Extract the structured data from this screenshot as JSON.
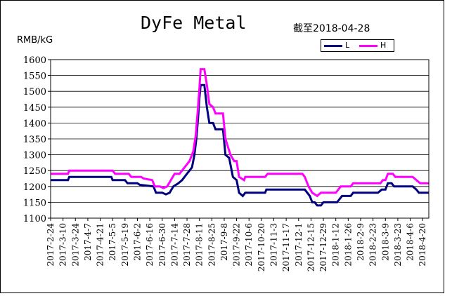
{
  "chart_data": {
    "type": "line",
    "title": "DyFe Metal",
    "subtitle": "截至2018-04-28",
    "ylabel": "RMB/kG",
    "ylim": [
      1100,
      1600
    ],
    "yticks": [
      1100,
      1150,
      1200,
      1250,
      1300,
      1350,
      1400,
      1450,
      1500,
      1550,
      1600
    ],
    "grid": true,
    "legend_position": "top-right",
    "categories": [
      "2017-2-24",
      "2017-3-10",
      "2017-3-24",
      "2017-4-7",
      "2017-4-21",
      "2017-5-5",
      "2017-5-19",
      "2017-6-2",
      "2017-6-16",
      "2017-6-30",
      "2017-7-14",
      "2017-7-28",
      "2017-8-11",
      "2017-8-25",
      "2017-9-8",
      "2017-9-22",
      "2017-10-6",
      "2017-10-20",
      "2017-11-3",
      "2017-11-17",
      "2017-12-1",
      "2017-12-15",
      "2017-12-29",
      "2018-1-12",
      "2018-1-26",
      "2018-2-9",
      "2018-2-23",
      "2018-3-9",
      "2018-3-23",
      "2018-4-6",
      "2018-4-20"
    ],
    "series": [
      {
        "name": "L",
        "color": "#00007f",
        "points": [
          [
            0,
            1220
          ],
          [
            1.4,
            1220
          ],
          [
            1.5,
            1230
          ],
          [
            4.9,
            1230
          ],
          [
            5.0,
            1220
          ],
          [
            6.0,
            1220
          ],
          [
            6.2,
            1210
          ],
          [
            7.0,
            1210
          ],
          [
            7.2,
            1205
          ],
          [
            8.3,
            1200
          ],
          [
            8.5,
            1180
          ],
          [
            9.0,
            1180
          ],
          [
            9.3,
            1175
          ],
          [
            9.6,
            1180
          ],
          [
            9.9,
            1200
          ],
          [
            10.3,
            1210
          ],
          [
            10.6,
            1220
          ],
          [
            11.0,
            1240
          ],
          [
            11.4,
            1260
          ],
          [
            11.6,
            1300
          ],
          [
            11.75,
            1350
          ],
          [
            11.9,
            1420
          ],
          [
            12.0,
            1480
          ],
          [
            12.1,
            1520
          ],
          [
            12.4,
            1520
          ],
          [
            12.6,
            1450
          ],
          [
            12.8,
            1400
          ],
          [
            13.1,
            1400
          ],
          [
            13.3,
            1380
          ],
          [
            13.9,
            1380
          ],
          [
            14.1,
            1300
          ],
          [
            14.4,
            1290
          ],
          [
            14.7,
            1230
          ],
          [
            15.0,
            1220
          ],
          [
            15.2,
            1180
          ],
          [
            15.5,
            1170
          ],
          [
            15.7,
            1180
          ],
          [
            17.3,
            1180
          ],
          [
            17.4,
            1190
          ],
          [
            20.5,
            1190
          ],
          [
            20.9,
            1170
          ],
          [
            21.1,
            1150
          ],
          [
            21.3,
            1150
          ],
          [
            21.5,
            1140
          ],
          [
            21.8,
            1140
          ],
          [
            22.0,
            1150
          ],
          [
            23.1,
            1150
          ],
          [
            23.3,
            1160
          ],
          [
            23.5,
            1170
          ],
          [
            24.2,
            1170
          ],
          [
            24.4,
            1180
          ],
          [
            26.4,
            1180
          ],
          [
            26.7,
            1190
          ],
          [
            27.0,
            1190
          ],
          [
            27.2,
            1210
          ],
          [
            27.5,
            1210
          ],
          [
            27.7,
            1200
          ],
          [
            29.2,
            1200
          ],
          [
            29.5,
            1190
          ],
          [
            29.7,
            1180
          ],
          [
            30.5,
            1180
          ]
        ]
      },
      {
        "name": "H",
        "color": "#ff00ff",
        "points": [
          [
            0,
            1240
          ],
          [
            1.4,
            1240
          ],
          [
            1.5,
            1250
          ],
          [
            5.0,
            1250
          ],
          [
            5.2,
            1240
          ],
          [
            6.3,
            1240
          ],
          [
            6.5,
            1230
          ],
          [
            7.3,
            1230
          ],
          [
            7.5,
            1225
          ],
          [
            8.2,
            1220
          ],
          [
            8.4,
            1200
          ],
          [
            8.8,
            1200
          ],
          [
            9.1,
            1195
          ],
          [
            9.4,
            1200
          ],
          [
            9.7,
            1220
          ],
          [
            10.0,
            1240
          ],
          [
            10.4,
            1240
          ],
          [
            10.8,
            1260
          ],
          [
            11.2,
            1280
          ],
          [
            11.5,
            1310
          ],
          [
            11.7,
            1360
          ],
          [
            11.85,
            1430
          ],
          [
            12.0,
            1510
          ],
          [
            12.1,
            1570
          ],
          [
            12.4,
            1570
          ],
          [
            12.6,
            1520
          ],
          [
            12.8,
            1460
          ],
          [
            13.1,
            1450
          ],
          [
            13.3,
            1430
          ],
          [
            13.9,
            1430
          ],
          [
            14.1,
            1350
          ],
          [
            14.5,
            1300
          ],
          [
            14.8,
            1280
          ],
          [
            15.0,
            1280
          ],
          [
            15.2,
            1230
          ],
          [
            15.6,
            1220
          ],
          [
            15.7,
            1230
          ],
          [
            17.3,
            1230
          ],
          [
            17.5,
            1240
          ],
          [
            20.3,
            1240
          ],
          [
            20.5,
            1230
          ],
          [
            20.8,
            1200
          ],
          [
            21.1,
            1180
          ],
          [
            21.5,
            1170
          ],
          [
            21.8,
            1180
          ],
          [
            23.0,
            1180
          ],
          [
            23.2,
            1190
          ],
          [
            23.4,
            1200
          ],
          [
            24.2,
            1200
          ],
          [
            24.4,
            1210
          ],
          [
            26.6,
            1210
          ],
          [
            26.8,
            1220
          ],
          [
            27.0,
            1220
          ],
          [
            27.2,
            1240
          ],
          [
            27.6,
            1240
          ],
          [
            27.8,
            1230
          ],
          [
            29.2,
            1230
          ],
          [
            29.5,
            1220
          ],
          [
            29.8,
            1210
          ],
          [
            30.5,
            1210
          ]
        ]
      }
    ]
  }
}
